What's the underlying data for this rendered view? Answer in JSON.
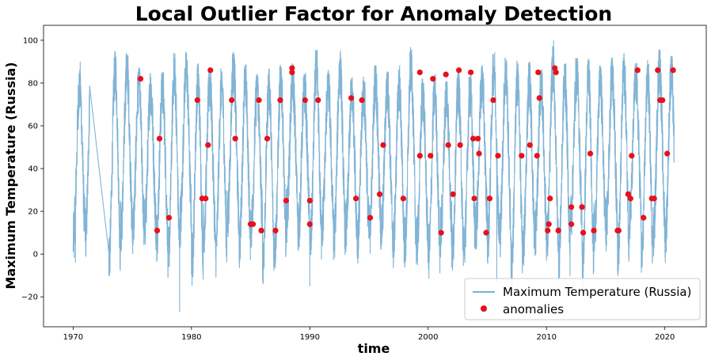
{
  "chart_data": {
    "type": "line",
    "title": "Local Outlier Factor for Anomaly Detection",
    "xlabel": "time",
    "ylabel": "Maximum Temperature (Russia)",
    "xlim": [
      1967.5,
      2023.5
    ],
    "ylim": [
      -34,
      107
    ],
    "x_ticks": [
      1970,
      1980,
      1990,
      2000,
      2010,
      2020
    ],
    "y_ticks": [
      -20,
      0,
      20,
      40,
      60,
      80,
      100
    ],
    "grid": false,
    "legend_position": "lower-right",
    "line_color": "#7ab0d4",
    "anomaly_color": "#e8101c",
    "series": [
      {
        "name": "Maximum Temperature (Russia)",
        "style": "line",
        "description_years": [
          1970,
          2020.8
        ],
        "gap": [
          1971.4,
          1973.0
        ],
        "annual_cycle": {
          "min_range": [
            -10,
            15
          ],
          "max_range": [
            78,
            94
          ]
        },
        "notable_points": [
          {
            "x": 1970.2,
            "y": -4
          },
          {
            "x": 1970.6,
            "y": 90
          },
          {
            "x": 1979.0,
            "y": -27
          },
          {
            "x": 1990.0,
            "y": -15
          },
          {
            "x": 2010.6,
            "y": 100
          },
          {
            "x": 2005.8,
            "y": -13
          }
        ]
      },
      {
        "name": "anomalies",
        "style": "scatter",
        "points": [
          [
            1975.7,
            82
          ],
          [
            1977.1,
            11
          ],
          [
            1977.3,
            54
          ],
          [
            1978.1,
            17
          ],
          [
            1980.5,
            72
          ],
          [
            1980.9,
            26
          ],
          [
            1981.2,
            26
          ],
          [
            1981.4,
            51
          ],
          [
            1981.6,
            86
          ],
          [
            1983.4,
            72
          ],
          [
            1983.7,
            54
          ],
          [
            1985.0,
            14
          ],
          [
            1985.2,
            14
          ],
          [
            1985.7,
            72
          ],
          [
            1985.9,
            11
          ],
          [
            1986.4,
            54
          ],
          [
            1987.1,
            11
          ],
          [
            1987.5,
            72
          ],
          [
            1988.0,
            25
          ],
          [
            1988.5,
            87
          ],
          [
            1988.5,
            85
          ],
          [
            1989.6,
            72
          ],
          [
            1990.0,
            14
          ],
          [
            1990.0,
            25
          ],
          [
            1990.7,
            72
          ],
          [
            1993.5,
            73
          ],
          [
            1993.9,
            26
          ],
          [
            1994.4,
            72
          ],
          [
            1995.1,
            17
          ],
          [
            1995.9,
            28
          ],
          [
            1996.2,
            51
          ],
          [
            1997.9,
            26
          ],
          [
            1999.3,
            85
          ],
          [
            1999.3,
            46
          ],
          [
            2000.2,
            46
          ],
          [
            2000.4,
            82
          ],
          [
            2001.1,
            10
          ],
          [
            2001.5,
            84
          ],
          [
            2001.7,
            51
          ],
          [
            2002.1,
            28
          ],
          [
            2002.6,
            86
          ],
          [
            2002.7,
            51
          ],
          [
            2003.6,
            85
          ],
          [
            2003.8,
            54
          ],
          [
            2003.9,
            26
          ],
          [
            2004.2,
            54
          ],
          [
            2004.3,
            47
          ],
          [
            2004.9,
            10
          ],
          [
            2005.2,
            26
          ],
          [
            2005.5,
            72
          ],
          [
            2005.9,
            46
          ],
          [
            2007.9,
            46
          ],
          [
            2008.6,
            51
          ],
          [
            2009.2,
            46
          ],
          [
            2009.3,
            85
          ],
          [
            2009.4,
            73
          ],
          [
            2010.1,
            11
          ],
          [
            2010.2,
            14
          ],
          [
            2010.3,
            26
          ],
          [
            2010.7,
            87
          ],
          [
            2010.8,
            85
          ],
          [
            2011.0,
            11
          ],
          [
            2012.1,
            22
          ],
          [
            2012.1,
            14
          ],
          [
            2013.0,
            22
          ],
          [
            2013.1,
            10
          ],
          [
            2013.7,
            47
          ],
          [
            2014.0,
            11
          ],
          [
            2016.0,
            11
          ],
          [
            2016.1,
            11
          ],
          [
            2016.9,
            28
          ],
          [
            2017.1,
            26
          ],
          [
            2017.2,
            46
          ],
          [
            2017.7,
            86
          ],
          [
            2018.2,
            17
          ],
          [
            2018.9,
            26
          ],
          [
            2019.1,
            26
          ],
          [
            2019.4,
            86
          ],
          [
            2019.6,
            72
          ],
          [
            2019.8,
            72
          ],
          [
            2020.2,
            47
          ],
          [
            2020.7,
            86
          ]
        ]
      }
    ]
  }
}
